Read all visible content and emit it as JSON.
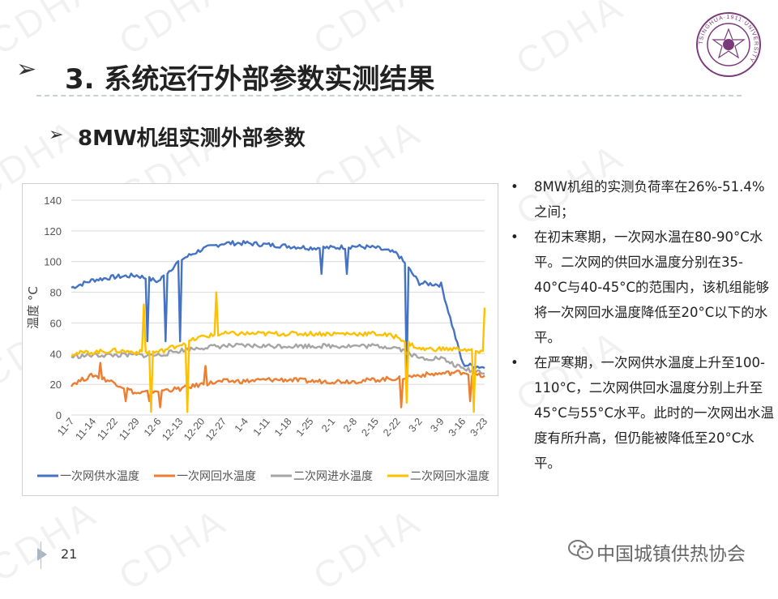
{
  "slide": {
    "title": "3. 系统运行外部参数实测结果",
    "title_marker": "➢",
    "subtitle": "8MW机组实测外部参数",
    "subtitle_marker": "➢",
    "watermark": "CDHA",
    "logo_text": "TSINGHUA·1911·UNIVERSITY",
    "page_number": "21",
    "footer_org": "中国城镇供热协会"
  },
  "bullets": [
    {
      "marker": "•",
      "text": "8MW机组的实测负荷率在26%-51.4%之间；"
    },
    {
      "marker": "•",
      "text": "在初末寒期，一次网水温在80-90°C水平。二次网的供回水温度分别在35-40°C与40-45°C的范围内，该机组能够将一次网回水温度降低至20°C以下的水平。"
    },
    {
      "marker": "•",
      "text": "在严寒期，一次网供水温度上升至100-110°C，二次网供回水温度分别上升至45°C与55°C水平。此时的一次网出水温度有所升高，但仍能被降低至20°C水平。"
    }
  ],
  "chart_data": {
    "type": "line",
    "ylabel": "温度 °C",
    "ylim": [
      0,
      140
    ],
    "yticks": [
      "0",
      "20",
      "40",
      "60",
      "80",
      "100",
      "120",
      "140"
    ],
    "categories": [
      "11-7",
      "11-14",
      "11-22",
      "11-29",
      "12-6",
      "12-13",
      "12-20",
      "12-27",
      "1-4",
      "1-11",
      "1-18",
      "1-25",
      "2-1",
      "2-8",
      "2-15",
      "2-22",
      "3-2",
      "3-9",
      "3-16",
      "3-23"
    ],
    "grid": true,
    "legend_position": "bottom",
    "series": [
      {
        "name": "一次网供水温度",
        "color": "#4472C4",
        "values": [
          83,
          88,
          90,
          91,
          87,
          101,
          108,
          112,
          112,
          111,
          110,
          109,
          109,
          110,
          109,
          105,
          86,
          85,
          33,
          31
        ],
        "spikes": [
          [
            3.5,
            48
          ],
          [
            4.3,
            48
          ],
          [
            5.0,
            48
          ],
          [
            11.5,
            92
          ],
          [
            12.7,
            92
          ],
          [
            15.4,
            25
          ]
        ]
      },
      {
        "name": "一次网回水温度",
        "color": "#ED7D31",
        "values": [
          20,
          26,
          21,
          14,
          16,
          17,
          20,
          22,
          22,
          23,
          23,
          22,
          22,
          22,
          23,
          24,
          26,
          27,
          28,
          25
        ],
        "spikes": [
          [
            1.3,
            34
          ],
          [
            2.5,
            9
          ],
          [
            3.6,
            9
          ],
          [
            4.1,
            5
          ],
          [
            6.2,
            32
          ],
          [
            15.2,
            5
          ],
          [
            18.3,
            9
          ]
        ]
      },
      {
        "name": "二次网进水温度",
        "color": "#A5A5A5",
        "values": [
          38,
          39,
          39,
          39,
          39,
          42,
          44,
          45,
          45,
          45,
          45,
          45,
          45,
          45,
          45,
          44,
          37,
          37,
          30,
          28
        ],
        "spikes": []
      },
      {
        "name": "二次网回水温度",
        "color": "#FFC000",
        "values": [
          40,
          41,
          42,
          41,
          41,
          46,
          51,
          53,
          53,
          53,
          53,
          53,
          53,
          53,
          53,
          51,
          43,
          43,
          43,
          40
        ],
        "spikes": [
          [
            3.3,
            72
          ],
          [
            3.7,
            2
          ],
          [
            5.3,
            2
          ],
          [
            6.7,
            80
          ],
          [
            15.4,
            8
          ],
          [
            18.5,
            2
          ],
          [
            19.0,
            70
          ]
        ]
      }
    ]
  }
}
